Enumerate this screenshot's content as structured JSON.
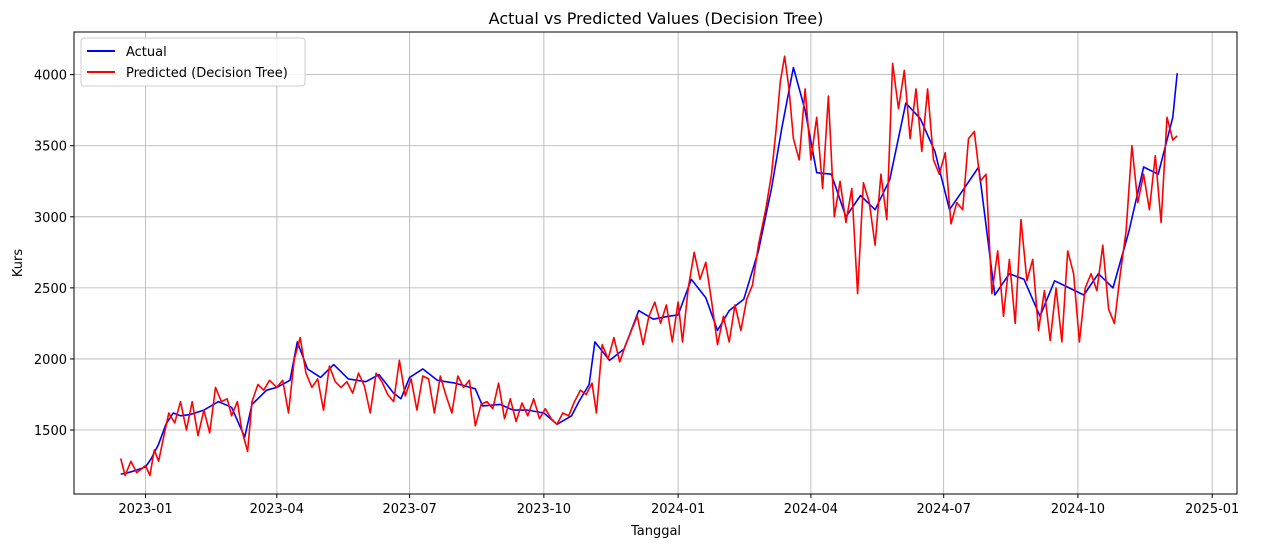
{
  "chart_data": {
    "type": "line",
    "title": "Actual vs Predicted Values (Decision Tree)",
    "xlabel": "Tanggal",
    "ylabel": "Kurs",
    "xlim": [
      "2022-11-13",
      "2025-01-18"
    ],
    "ylim": [
      1050,
      4300
    ],
    "x_ticks": [
      "2023-01",
      "2023-04",
      "2023-07",
      "2023-10",
      "2024-01",
      "2024-04",
      "2024-07",
      "2024-10",
      "2025-01"
    ],
    "x_tick_dates": [
      "2023-01-01",
      "2023-04-01",
      "2023-07-01",
      "2023-10-01",
      "2024-01-01",
      "2024-04-01",
      "2024-07-01",
      "2024-10-01",
      "2025-01-01"
    ],
    "y_ticks": [
      1500,
      2000,
      2500,
      3000,
      3500,
      4000
    ],
    "grid": true,
    "legend_position": "top-left",
    "series": [
      {
        "name": "Actual",
        "color": "#0000ff",
        "points": [
          [
            "2022-12-15",
            1190
          ],
          [
            "2022-12-20",
            1200
          ],
          [
            "2022-12-25",
            1215
          ],
          [
            "2023-01-01",
            1240
          ],
          [
            "2023-01-05",
            1300
          ],
          [
            "2023-01-10",
            1400
          ],
          [
            "2023-01-15",
            1540
          ],
          [
            "2023-01-20",
            1620
          ],
          [
            "2023-01-25",
            1600
          ],
          [
            "2023-02-01",
            1610
          ],
          [
            "2023-02-10",
            1640
          ],
          [
            "2023-02-20",
            1700
          ],
          [
            "2023-03-01",
            1660
          ],
          [
            "2023-03-10",
            1450
          ],
          [
            "2023-03-15",
            1680
          ],
          [
            "2023-03-25",
            1780
          ],
          [
            "2023-04-01",
            1800
          ],
          [
            "2023-04-10",
            1850
          ],
          [
            "2023-04-15",
            2120
          ],
          [
            "2023-04-22",
            1930
          ],
          [
            "2023-05-01",
            1870
          ],
          [
            "2023-05-10",
            1960
          ],
          [
            "2023-05-20",
            1860
          ],
          [
            "2023-06-01",
            1840
          ],
          [
            "2023-06-10",
            1890
          ],
          [
            "2023-06-20",
            1760
          ],
          [
            "2023-06-25",
            1720
          ],
          [
            "2023-07-01",
            1870
          ],
          [
            "2023-07-10",
            1930
          ],
          [
            "2023-07-20",
            1850
          ],
          [
            "2023-08-01",
            1830
          ],
          [
            "2023-08-15",
            1790
          ],
          [
            "2023-08-20",
            1670
          ],
          [
            "2023-09-01",
            1680
          ],
          [
            "2023-09-10",
            1640
          ],
          [
            "2023-09-20",
            1640
          ],
          [
            "2023-10-01",
            1620
          ],
          [
            "2023-10-10",
            1540
          ],
          [
            "2023-10-20",
            1600
          ],
          [
            "2023-10-25",
            1700
          ],
          [
            "2023-11-01",
            1820
          ],
          [
            "2023-11-05",
            2120
          ],
          [
            "2023-11-15",
            1990
          ],
          [
            "2023-11-25",
            2070
          ],
          [
            "2023-12-05",
            2340
          ],
          [
            "2023-12-15",
            2280
          ],
          [
            "2023-12-25",
            2300
          ],
          [
            "2024-01-01",
            2310
          ],
          [
            "2024-01-10",
            2560
          ],
          [
            "2024-01-20",
            2430
          ],
          [
            "2024-01-28",
            2200
          ],
          [
            "2024-02-05",
            2340
          ],
          [
            "2024-02-15",
            2420
          ],
          [
            "2024-02-25",
            2760
          ],
          [
            "2024-03-05",
            3200
          ],
          [
            "2024-03-12",
            3620
          ],
          [
            "2024-03-20",
            4050
          ],
          [
            "2024-03-28",
            3750
          ],
          [
            "2024-04-05",
            3310
          ],
          [
            "2024-04-15",
            3300
          ],
          [
            "2024-04-25",
            3000
          ],
          [
            "2024-05-05",
            3150
          ],
          [
            "2024-05-15",
            3050
          ],
          [
            "2024-05-25",
            3260
          ],
          [
            "2024-06-05",
            3800
          ],
          [
            "2024-06-15",
            3690
          ],
          [
            "2024-06-25",
            3460
          ],
          [
            "2024-07-05",
            3050
          ],
          [
            "2024-07-15",
            3200
          ],
          [
            "2024-07-25",
            3350
          ],
          [
            "2024-08-05",
            2450
          ],
          [
            "2024-08-15",
            2600
          ],
          [
            "2024-08-25",
            2560
          ],
          [
            "2024-09-05",
            2300
          ],
          [
            "2024-09-15",
            2550
          ],
          [
            "2024-09-25",
            2500
          ],
          [
            "2024-10-05",
            2450
          ],
          [
            "2024-10-15",
            2600
          ],
          [
            "2024-10-25",
            2500
          ],
          [
            "2024-11-05",
            2900
          ],
          [
            "2024-11-15",
            3350
          ],
          [
            "2024-11-25",
            3300
          ],
          [
            "2024-12-05",
            3700
          ],
          [
            "2024-12-08",
            4010
          ]
        ]
      },
      {
        "name": "Predicted (Decision Tree)",
        "color": "#ff0000",
        "points": [
          [
            "2022-12-15",
            1300
          ],
          [
            "2022-12-18",
            1180
          ],
          [
            "2022-12-22",
            1280
          ],
          [
            "2022-12-26",
            1200
          ],
          [
            "2023-01-01",
            1250
          ],
          [
            "2023-01-04",
            1180
          ],
          [
            "2023-01-07",
            1360
          ],
          [
            "2023-01-10",
            1280
          ],
          [
            "2023-01-14",
            1480
          ],
          [
            "2023-01-17",
            1620
          ],
          [
            "2023-01-21",
            1550
          ],
          [
            "2023-01-25",
            1700
          ],
          [
            "2023-01-29",
            1500
          ],
          [
            "2023-02-02",
            1700
          ],
          [
            "2023-02-06",
            1460
          ],
          [
            "2023-02-10",
            1640
          ],
          [
            "2023-02-14",
            1480
          ],
          [
            "2023-02-18",
            1800
          ],
          [
            "2023-02-22",
            1700
          ],
          [
            "2023-02-26",
            1720
          ],
          [
            "2023-03-01",
            1600
          ],
          [
            "2023-03-05",
            1700
          ],
          [
            "2023-03-08",
            1500
          ],
          [
            "2023-03-12",
            1350
          ],
          [
            "2023-03-15",
            1700
          ],
          [
            "2023-03-19",
            1820
          ],
          [
            "2023-03-23",
            1780
          ],
          [
            "2023-03-27",
            1850
          ],
          [
            "2023-04-01",
            1800
          ],
          [
            "2023-04-05",
            1850
          ],
          [
            "2023-04-09",
            1620
          ],
          [
            "2023-04-13",
            2000
          ],
          [
            "2023-04-17",
            2150
          ],
          [
            "2023-04-21",
            1900
          ],
          [
            "2023-04-25",
            1800
          ],
          [
            "2023-04-29",
            1860
          ],
          [
            "2023-05-03",
            1640
          ],
          [
            "2023-05-07",
            1950
          ],
          [
            "2023-05-11",
            1840
          ],
          [
            "2023-05-15",
            1800
          ],
          [
            "2023-05-19",
            1840
          ],
          [
            "2023-05-23",
            1760
          ],
          [
            "2023-05-27",
            1900
          ],
          [
            "2023-05-31",
            1810
          ],
          [
            "2023-06-04",
            1620
          ],
          [
            "2023-06-08",
            1900
          ],
          [
            "2023-06-12",
            1840
          ],
          [
            "2023-06-16",
            1750
          ],
          [
            "2023-06-20",
            1700
          ],
          [
            "2023-06-24",
            1990
          ],
          [
            "2023-06-28",
            1740
          ],
          [
            "2023-07-02",
            1860
          ],
          [
            "2023-07-06",
            1640
          ],
          [
            "2023-07-10",
            1880
          ],
          [
            "2023-07-14",
            1860
          ],
          [
            "2023-07-18",
            1620
          ],
          [
            "2023-07-22",
            1880
          ],
          [
            "2023-07-26",
            1740
          ],
          [
            "2023-07-30",
            1620
          ],
          [
            "2023-08-03",
            1880
          ],
          [
            "2023-08-07",
            1800
          ],
          [
            "2023-08-11",
            1850
          ],
          [
            "2023-08-15",
            1530
          ],
          [
            "2023-08-19",
            1680
          ],
          [
            "2023-08-23",
            1700
          ],
          [
            "2023-08-27",
            1650
          ],
          [
            "2023-08-31",
            1830
          ],
          [
            "2023-09-04",
            1580
          ],
          [
            "2023-09-08",
            1720
          ],
          [
            "2023-09-12",
            1560
          ],
          [
            "2023-09-16",
            1690
          ],
          [
            "2023-09-20",
            1600
          ],
          [
            "2023-09-24",
            1720
          ],
          [
            "2023-09-28",
            1580
          ],
          [
            "2023-10-02",
            1650
          ],
          [
            "2023-10-06",
            1580
          ],
          [
            "2023-10-10",
            1540
          ],
          [
            "2023-10-14",
            1620
          ],
          [
            "2023-10-18",
            1600
          ],
          [
            "2023-10-22",
            1700
          ],
          [
            "2023-10-26",
            1780
          ],
          [
            "2023-10-30",
            1750
          ],
          [
            "2023-11-03",
            1830
          ],
          [
            "2023-11-06",
            1620
          ],
          [
            "2023-11-10",
            2100
          ],
          [
            "2023-11-14",
            2000
          ],
          [
            "2023-11-18",
            2150
          ],
          [
            "2023-11-22",
            1980
          ],
          [
            "2023-11-26",
            2100
          ],
          [
            "2023-11-30",
            2200
          ],
          [
            "2023-12-04",
            2300
          ],
          [
            "2023-12-08",
            2100
          ],
          [
            "2023-12-12",
            2300
          ],
          [
            "2023-12-16",
            2400
          ],
          [
            "2023-12-20",
            2250
          ],
          [
            "2023-12-24",
            2380
          ],
          [
            "2023-12-28",
            2120
          ],
          [
            "2024-01-01",
            2400
          ],
          [
            "2024-01-04",
            2120
          ],
          [
            "2024-01-08",
            2500
          ],
          [
            "2024-01-12",
            2750
          ],
          [
            "2024-01-16",
            2560
          ],
          [
            "2024-01-20",
            2680
          ],
          [
            "2024-01-24",
            2400
          ],
          [
            "2024-01-28",
            2100
          ],
          [
            "2024-02-01",
            2300
          ],
          [
            "2024-02-05",
            2120
          ],
          [
            "2024-02-09",
            2380
          ],
          [
            "2024-02-13",
            2200
          ],
          [
            "2024-02-17",
            2420
          ],
          [
            "2024-02-21",
            2520
          ],
          [
            "2024-02-25",
            2800
          ],
          [
            "2024-03-01",
            3050
          ],
          [
            "2024-03-05",
            3300
          ],
          [
            "2024-03-08",
            3600
          ],
          [
            "2024-03-11",
            3950
          ],
          [
            "2024-03-14",
            4130
          ],
          [
            "2024-03-17",
            3900
          ],
          [
            "2024-03-20",
            3550
          ],
          [
            "2024-03-24",
            3400
          ],
          [
            "2024-03-28",
            3900
          ],
          [
            "2024-04-01",
            3400
          ],
          [
            "2024-04-05",
            3700
          ],
          [
            "2024-04-09",
            3200
          ],
          [
            "2024-04-13",
            3850
          ],
          [
            "2024-04-17",
            3000
          ],
          [
            "2024-04-21",
            3250
          ],
          [
            "2024-04-25",
            2960
          ],
          [
            "2024-04-29",
            3200
          ],
          [
            "2024-05-03",
            2460
          ],
          [
            "2024-05-07",
            3240
          ],
          [
            "2024-05-11",
            3100
          ],
          [
            "2024-05-15",
            2800
          ],
          [
            "2024-05-19",
            3300
          ],
          [
            "2024-05-23",
            2980
          ],
          [
            "2024-05-27",
            4080
          ],
          [
            "2024-05-31",
            3760
          ],
          [
            "2024-06-04",
            4030
          ],
          [
            "2024-06-08",
            3550
          ],
          [
            "2024-06-12",
            3900
          ],
          [
            "2024-06-16",
            3460
          ],
          [
            "2024-06-20",
            3900
          ],
          [
            "2024-06-24",
            3400
          ],
          [
            "2024-06-28",
            3300
          ],
          [
            "2024-07-02",
            3450
          ],
          [
            "2024-07-06",
            2950
          ],
          [
            "2024-07-10",
            3100
          ],
          [
            "2024-07-14",
            3050
          ],
          [
            "2024-07-18",
            3550
          ],
          [
            "2024-07-22",
            3600
          ],
          [
            "2024-07-26",
            3250
          ],
          [
            "2024-07-30",
            3300
          ],
          [
            "2024-08-03",
            2460
          ],
          [
            "2024-08-07",
            2760
          ],
          [
            "2024-08-11",
            2300
          ],
          [
            "2024-08-15",
            2700
          ],
          [
            "2024-08-19",
            2250
          ],
          [
            "2024-08-23",
            2980
          ],
          [
            "2024-08-27",
            2550
          ],
          [
            "2024-08-31",
            2700
          ],
          [
            "2024-09-04",
            2200
          ],
          [
            "2024-09-08",
            2480
          ],
          [
            "2024-09-12",
            2130
          ],
          [
            "2024-09-16",
            2500
          ],
          [
            "2024-09-20",
            2120
          ],
          [
            "2024-09-24",
            2760
          ],
          [
            "2024-09-28",
            2600
          ],
          [
            "2024-10-02",
            2120
          ],
          [
            "2024-10-06",
            2500
          ],
          [
            "2024-10-10",
            2600
          ],
          [
            "2024-10-14",
            2480
          ],
          [
            "2024-10-18",
            2800
          ],
          [
            "2024-10-22",
            2350
          ],
          [
            "2024-10-26",
            2250
          ],
          [
            "2024-10-30",
            2600
          ],
          [
            "2024-11-03",
            2900
          ],
          [
            "2024-11-07",
            3500
          ],
          [
            "2024-11-11",
            3100
          ],
          [
            "2024-11-15",
            3300
          ],
          [
            "2024-11-19",
            3050
          ],
          [
            "2024-11-23",
            3430
          ],
          [
            "2024-11-27",
            2960
          ],
          [
            "2024-12-01",
            3700
          ],
          [
            "2024-12-05",
            3540
          ],
          [
            "2024-12-08",
            3570
          ]
        ]
      }
    ]
  }
}
